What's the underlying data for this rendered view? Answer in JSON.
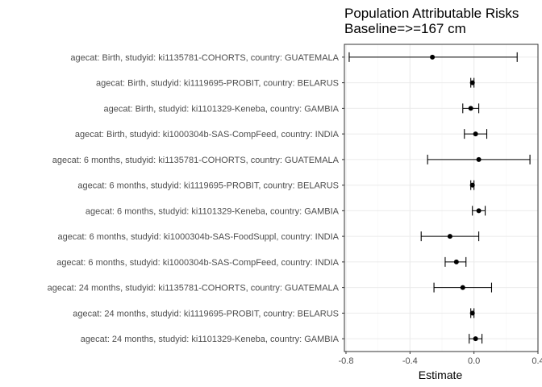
{
  "chart_data": {
    "type": "forest",
    "title": "Population Attributable Risks",
    "subtitle": "Baseline=>=167 cm",
    "xlabel": "Estimate",
    "ylabel": "",
    "xlim": [
      -0.81,
      0.4
    ],
    "xticks": [
      "-0.8",
      "-0.4",
      "0.0",
      "0.4"
    ],
    "xtick_values": [
      -0.8,
      -0.4,
      0.0,
      0.4
    ],
    "grid": true,
    "colors": {
      "panel_border": "#333333",
      "grid_major": "#ebebeb",
      "grid_minor": "#f5f5f5",
      "marks": "#000000"
    },
    "rows": [
      {
        "label": "agecat: Birth, studyid: ki1135781-COHORTS, country: GUATEMALA",
        "estimate": -0.26,
        "lower": -0.78,
        "upper": 0.27
      },
      {
        "label": "agecat: Birth, studyid: ki1119695-PROBIT, country: BELARUS",
        "estimate": -0.01,
        "lower": -0.02,
        "upper": 0.0
      },
      {
        "label": "agecat: Birth, studyid: ki1101329-Keneba, country: GAMBIA",
        "estimate": -0.02,
        "lower": -0.07,
        "upper": 0.03
      },
      {
        "label": "agecat: Birth, studyid: ki1000304b-SAS-CompFeed, country: INDIA",
        "estimate": 0.01,
        "lower": -0.06,
        "upper": 0.08
      },
      {
        "label": "agecat: 6 months, studyid: ki1135781-COHORTS, country: GUATEMALA",
        "estimate": 0.03,
        "lower": -0.29,
        "upper": 0.35
      },
      {
        "label": "agecat: 6 months, studyid: ki1119695-PROBIT, country: BELARUS",
        "estimate": -0.01,
        "lower": -0.02,
        "upper": 0.0
      },
      {
        "label": "agecat: 6 months, studyid: ki1101329-Keneba, country: GAMBIA",
        "estimate": 0.03,
        "lower": -0.01,
        "upper": 0.07
      },
      {
        "label": "agecat: 6 months, studyid: ki1000304b-SAS-FoodSuppl, country: INDIA",
        "estimate": -0.15,
        "lower": -0.33,
        "upper": 0.03
      },
      {
        "label": "agecat: 6 months, studyid: ki1000304b-SAS-CompFeed, country: INDIA",
        "estimate": -0.11,
        "lower": -0.18,
        "upper": -0.05
      },
      {
        "label": "agecat: 24 months, studyid: ki1135781-COHORTS, country: GUATEMALA",
        "estimate": -0.07,
        "lower": -0.25,
        "upper": 0.11
      },
      {
        "label": "agecat: 24 months, studyid: ki1119695-PROBIT, country: BELARUS",
        "estimate": -0.01,
        "lower": -0.02,
        "upper": 0.0
      },
      {
        "label": "agecat: 24 months, studyid: ki1101329-Keneba, country: GAMBIA",
        "estimate": 0.01,
        "lower": -0.03,
        "upper": 0.05
      }
    ]
  }
}
